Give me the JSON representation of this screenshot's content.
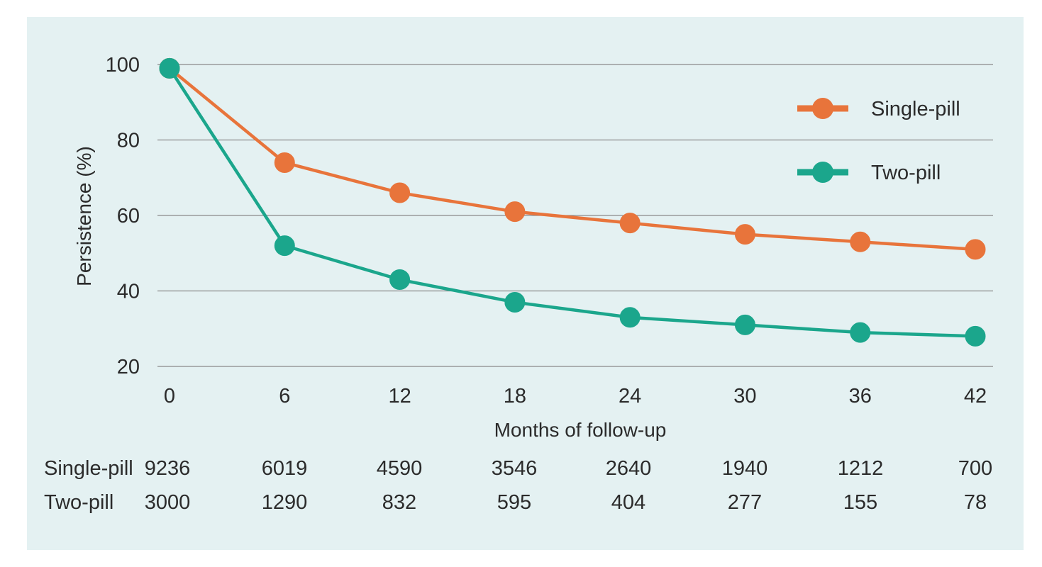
{
  "chart_data": {
    "type": "line",
    "title": "",
    "xlabel": "Months of follow-up",
    "ylabel": "Persistence (%)",
    "x": [
      0,
      6,
      12,
      18,
      24,
      30,
      36,
      42
    ],
    "x_tick_labels": [
      "0",
      "6",
      "12",
      "18",
      "24",
      "30",
      "36",
      "42"
    ],
    "y_tick_labels": [
      "20",
      "40",
      "60",
      "80",
      "100"
    ],
    "ylim": [
      20,
      100
    ],
    "grid": true,
    "legend_position": "top-right",
    "series": [
      {
        "name": "Single-pill",
        "color": "#e8743b",
        "values": [
          99,
          74,
          66,
          61,
          58,
          55,
          53,
          51
        ]
      },
      {
        "name": "Two-pill",
        "color": "#1ba68c",
        "values": [
          99,
          52,
          43,
          37,
          33,
          31,
          29,
          28
        ]
      }
    ],
    "numbers_at_risk": [
      {
        "label": "Single-pill",
        "values": [
          "9236",
          "6019",
          "4590",
          "3546",
          "2640",
          "1940",
          "1212",
          "700"
        ]
      },
      {
        "label": "Two-pill",
        "values": [
          "3000",
          "1290",
          "832",
          "595",
          "404",
          "277",
          "155",
          "78"
        ]
      }
    ]
  },
  "colors": {
    "panel_background": "#e4f1f2",
    "gridline": "#8a8a8a"
  }
}
